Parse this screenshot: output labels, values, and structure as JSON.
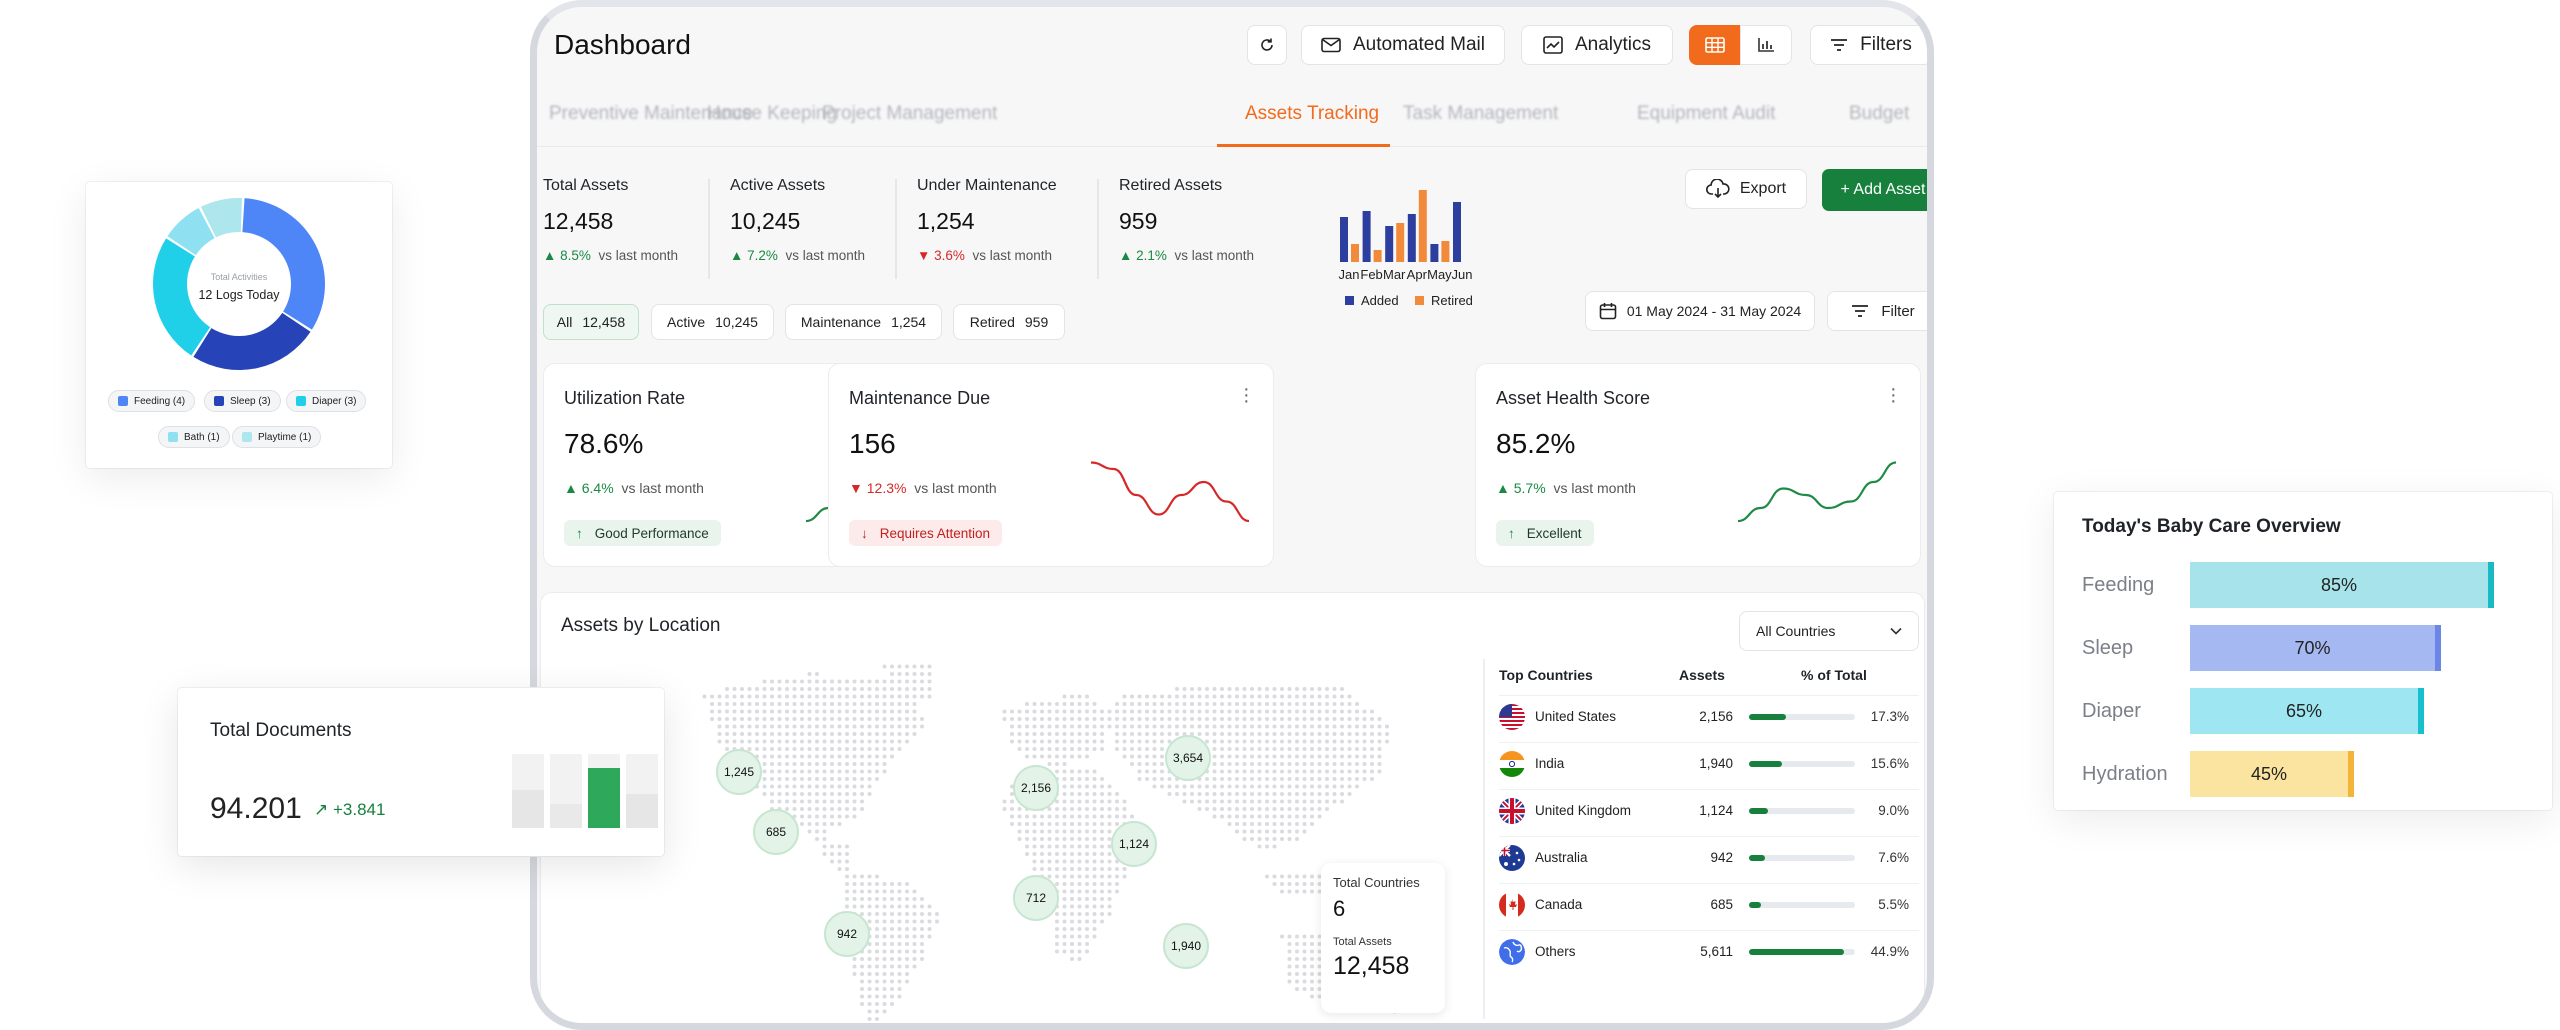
{
  "header": {
    "title": "Dashboard",
    "automated_mail": "Automated Mail",
    "analytics": "Analytics",
    "filters": "Filters"
  },
  "tabs": [
    {
      "label": "Preventive Maintenance"
    },
    {
      "label": "House Keeping"
    },
    {
      "label": "Project Management"
    },
    {
      "label": "Assets Tracking",
      "active": true
    },
    {
      "label": "Task Management"
    },
    {
      "label": "Equipment Audit"
    },
    {
      "label": "Budget"
    }
  ],
  "stats": [
    {
      "label": "Total Assets",
      "value": "12,458",
      "direction": "up",
      "change": "8.5%",
      "suffix": "vs last month"
    },
    {
      "label": "Active Assets",
      "value": "10,245",
      "direction": "up",
      "change": "7.2%",
      "suffix": "vs last month"
    },
    {
      "label": "Under Maintenance",
      "value": "1,254",
      "direction": "down",
      "change": "3.6%",
      "suffix": "vs last month"
    },
    {
      "label": "Retired Assets",
      "value": "959",
      "direction": "up",
      "change": "2.1%",
      "suffix": "vs last month"
    }
  ],
  "actions": {
    "export": "Export",
    "add_asset": "+ Add Asset",
    "date_range": "01 May 2024 - 31 May 2024",
    "filter": "Filter"
  },
  "pills": [
    {
      "label": "All",
      "count": "12,458",
      "active": true
    },
    {
      "label": "Active",
      "count": "10,245"
    },
    {
      "label": "Maintenance",
      "count": "1,254"
    },
    {
      "label": "Retired",
      "count": "959"
    }
  ],
  "kpis": [
    {
      "title": "Utilization Rate",
      "value": "78.6%",
      "direction": "up",
      "change": "6.4%",
      "suffix": "vs last month",
      "badge": "Good Performance",
      "badge_type": "good",
      "trend": [
        2,
        4,
        7,
        6,
        4,
        5,
        8,
        11
      ]
    },
    {
      "title": "Maintenance Due",
      "value": "156",
      "direction": "down",
      "change": "12.3%",
      "suffix": "vs last month",
      "badge": "Requires Attention",
      "badge_type": "bad",
      "trend": [
        11,
        10,
        6,
        3,
        6,
        8,
        5,
        2
      ]
    },
    {
      "title": "Asset Health Score",
      "value": "85.2%",
      "direction": "up",
      "change": "5.7%",
      "suffix": "vs last month",
      "badge": "Excellent",
      "badge_type": "good",
      "trend": [
        2,
        4,
        7,
        6,
        4,
        5,
        8,
        11
      ]
    }
  ],
  "chart_data": [
    {
      "type": "bar",
      "categories": [
        "Jan",
        "Feb",
        "Mar",
        "Apr",
        "May",
        "Jun"
      ],
      "series": [
        {
          "name": "Added",
          "color": "#2c3e9e",
          "values": [
            30,
            34,
            24,
            32,
            12,
            40
          ]
        },
        {
          "name": "Retired",
          "color": "#f28a3c",
          "values": [
            12,
            8,
            26,
            48,
            14,
            0
          ]
        }
      ],
      "legend": "bottom"
    },
    {
      "type": "pie",
      "center_label": "Total Activities",
      "center_value": "12 Logs Today",
      "slices": [
        {
          "label": "Feeding (4)",
          "value": 4,
          "color": "#4f86f7"
        },
        {
          "label": "Sleep (3)",
          "value": 3,
          "color": "#2743b8"
        },
        {
          "label": "Diaper (3)",
          "value": 3,
          "color": "#1fd0e8"
        },
        {
          "label": "Bath (1)",
          "value": 1,
          "color": "#8fe0f0"
        },
        {
          "label": "Playtime (1)",
          "value": 1,
          "color": "#aee6ee"
        }
      ]
    },
    {
      "type": "bar",
      "title": "Today's Baby Care Overview",
      "categories": [
        "Feeding",
        "Sleep",
        "Diaper",
        "Hydration"
      ],
      "values": [
        85,
        70,
        65,
        45
      ],
      "colors": [
        "#a6e3ea",
        "#a6b8f2",
        "#9ee7f2",
        "#fbe3a0"
      ],
      "cap_colors": [
        "#1bb9c4",
        "#6b86e6",
        "#16c0cc",
        "#f4b43a"
      ]
    }
  ],
  "location": {
    "title": "Assets by Location",
    "select": "All Countries",
    "bubbles": [
      "1,245",
      "685",
      "942",
      "2,156",
      "712",
      "1,124",
      "3,654",
      "1,940"
    ],
    "summary": {
      "countries_label": "Total Countries",
      "countries": "6",
      "assets_label": "Total Assets",
      "assets": "12,458"
    },
    "table_headers": [
      "Top Countries",
      "Assets",
      "% of Total"
    ],
    "rows": [
      {
        "country": "United States",
        "assets": "2,156",
        "pct": "17.3%",
        "share": 17.3,
        "flag": "us"
      },
      {
        "country": "India",
        "assets": "1,940",
        "pct": "15.6%",
        "share": 15.6,
        "flag": "in"
      },
      {
        "country": "United Kingdom",
        "assets": "1,124",
        "pct": "9.0%",
        "share": 9.0,
        "flag": "gb"
      },
      {
        "country": "Australia",
        "assets": "942",
        "pct": "7.6%",
        "share": 7.6,
        "flag": "au"
      },
      {
        "country": "Canada",
        "assets": "685",
        "pct": "5.5%",
        "share": 5.5,
        "flag": "ca"
      },
      {
        "country": "Others",
        "assets": "5,611",
        "pct": "44.9%",
        "share": 44.9,
        "flag": "globe"
      }
    ]
  },
  "documents": {
    "title": "Total Documents",
    "value": "94.201",
    "change": "+3.841"
  }
}
